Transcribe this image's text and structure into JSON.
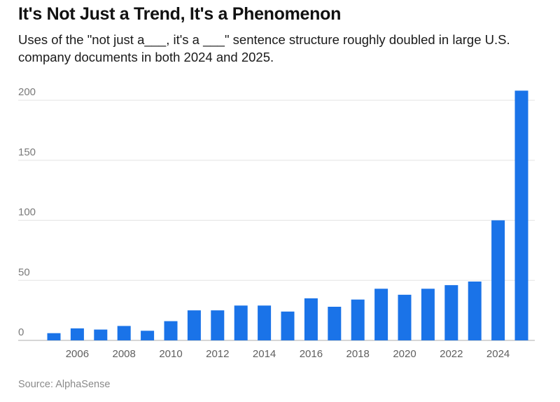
{
  "title": "It's Not Just a Trend, It's a Phenomenon",
  "subtitle": "Uses of the \"not just a___, it's a ___\" sentence structure roughly doubled in large U.S. company documents in both 2024 and 2025.",
  "source": "Source: AlphaSense",
  "colors": {
    "bar": "#1a73e8"
  },
  "chart_data": {
    "type": "bar",
    "title": "It's Not Just a Trend, It's a Phenomenon",
    "xlabel": "",
    "ylabel": "",
    "categories": [
      2005,
      2006,
      2007,
      2008,
      2009,
      2010,
      2011,
      2012,
      2013,
      2014,
      2015,
      2016,
      2017,
      2018,
      2019,
      2020,
      2021,
      2022,
      2023,
      2024,
      2025
    ],
    "values": [
      6,
      10,
      9,
      12,
      8,
      16,
      25,
      25,
      29,
      29,
      24,
      35,
      28,
      34,
      43,
      38,
      43,
      46,
      49,
      100,
      208
    ],
    "ylim": [
      0,
      210
    ],
    "yticks": [
      0,
      50,
      100,
      150,
      200
    ],
    "xtick_labels": [
      "2006",
      "2008",
      "2010",
      "2012",
      "2014",
      "2016",
      "2018",
      "2020",
      "2022",
      "2024"
    ],
    "grid": true,
    "legend": "none"
  }
}
